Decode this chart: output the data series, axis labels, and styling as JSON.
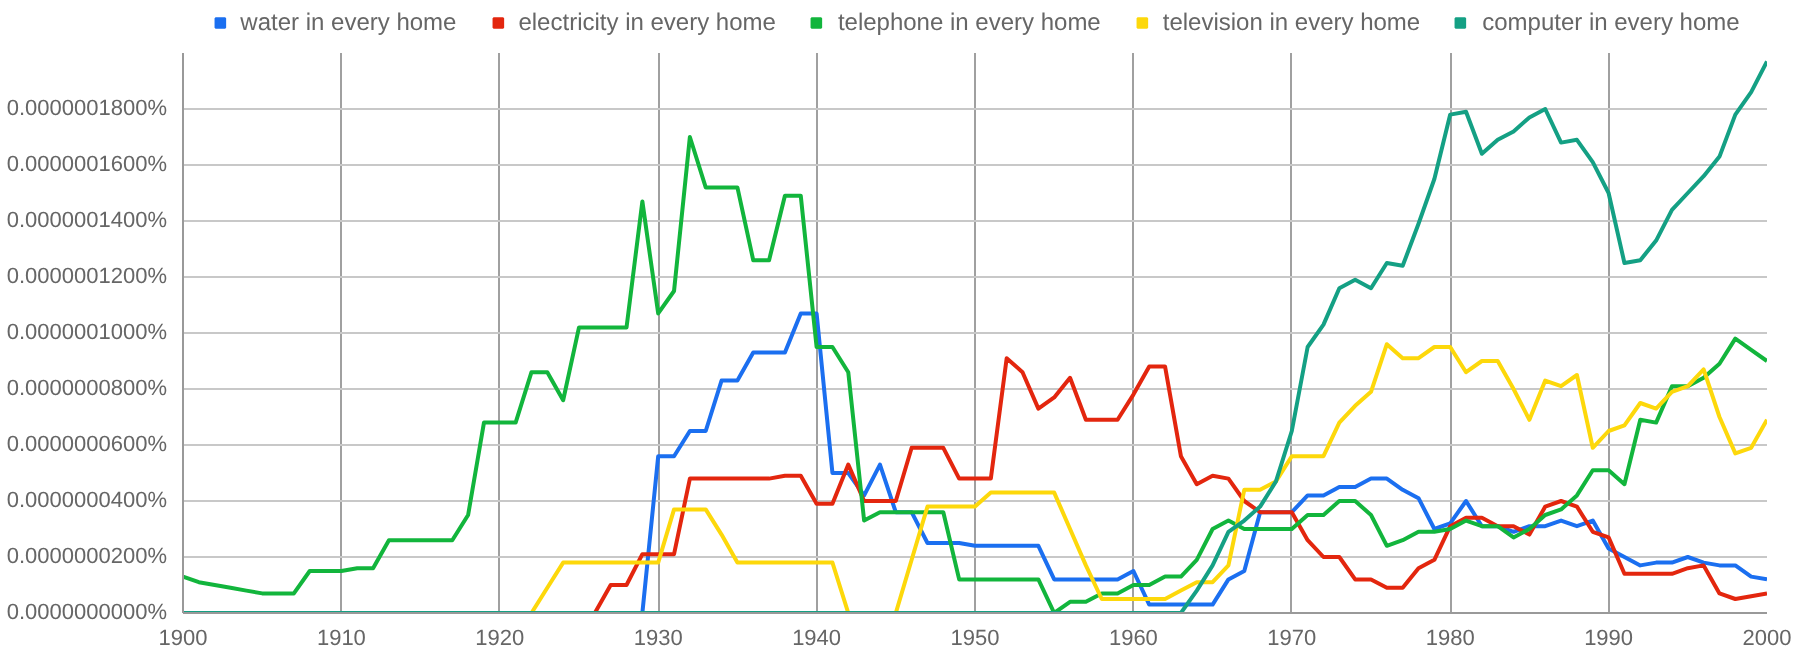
{
  "chart_data": {
    "type": "line",
    "x": [
      1900,
      1901,
      1902,
      1903,
      1904,
      1905,
      1906,
      1907,
      1908,
      1909,
      1910,
      1911,
      1912,
      1913,
      1914,
      1915,
      1916,
      1917,
      1918,
      1919,
      1920,
      1921,
      1922,
      1923,
      1924,
      1925,
      1926,
      1927,
      1928,
      1929,
      1930,
      1931,
      1932,
      1933,
      1934,
      1935,
      1936,
      1937,
      1938,
      1939,
      1940,
      1941,
      1942,
      1943,
      1944,
      1945,
      1946,
      1947,
      1948,
      1949,
      1950,
      1951,
      1952,
      1953,
      1954,
      1955,
      1956,
      1957,
      1958,
      1959,
      1960,
      1961,
      1962,
      1963,
      1964,
      1965,
      1966,
      1967,
      1968,
      1969,
      1970,
      1971,
      1972,
      1973,
      1974,
      1975,
      1976,
      1977,
      1978,
      1979,
      1980,
      1981,
      1982,
      1983,
      1984,
      1985,
      1986,
      1987,
      1988,
      1989,
      1990,
      1991,
      1992,
      1993,
      1994,
      1995,
      1996,
      1997,
      1998,
      1999,
      2000
    ],
    "series": [
      {
        "name": "water in every home",
        "color": "#1b6ff0",
        "values": [
          null,
          null,
          null,
          null,
          null,
          null,
          null,
          null,
          null,
          null,
          null,
          null,
          null,
          null,
          null,
          null,
          null,
          null,
          null,
          null,
          null,
          null,
          null,
          null,
          null,
          null,
          null,
          null,
          0,
          0,
          5.6e-08,
          5.6e-08,
          6.5e-08,
          6.5e-08,
          8.3e-08,
          8.3e-08,
          9.3e-08,
          9.3e-08,
          9.3e-08,
          1.07e-07,
          1.07e-07,
          5e-08,
          5e-08,
          4.2e-08,
          5.3e-08,
          3.6e-08,
          3.6e-08,
          2.5e-08,
          2.5e-08,
          2.5e-08,
          2.4e-08,
          2.4e-08,
          2.4e-08,
          2.4e-08,
          2.4e-08,
          1.2e-08,
          1.2e-08,
          1.2e-08,
          1.2e-08,
          1.2e-08,
          1.5e-08,
          3e-09,
          3e-09,
          3e-09,
          3e-09,
          3e-09,
          1.2e-08,
          1.5e-08,
          3.6e-08,
          3.6e-08,
          3.6e-08,
          4.2e-08,
          4.2e-08,
          4.5e-08,
          4.5e-08,
          4.8e-08,
          4.8e-08,
          4.4e-08,
          4.1e-08,
          3e-08,
          3.2e-08,
          4e-08,
          3.1e-08,
          3.1e-08,
          2.9e-08,
          3.1e-08,
          3.1e-08,
          3.3e-08,
          3.1e-08,
          3.3e-08,
          2.3e-08,
          2e-08,
          1.7e-08,
          1.8e-08,
          1.8e-08,
          2e-08,
          1.8e-08,
          1.7e-08,
          1.7e-08,
          1.3e-08,
          1.2e-08
        ]
      },
      {
        "name": "electricity in every home",
        "color": "#e3260e",
        "values": [
          null,
          null,
          null,
          null,
          null,
          null,
          null,
          null,
          null,
          null,
          null,
          null,
          null,
          null,
          null,
          null,
          null,
          null,
          null,
          null,
          null,
          null,
          null,
          null,
          null,
          0,
          0,
          1e-08,
          1e-08,
          2.1e-08,
          2.1e-08,
          2.1e-08,
          4.8e-08,
          4.8e-08,
          4.8e-08,
          4.8e-08,
          4.8e-08,
          4.8e-08,
          4.9e-08,
          4.9e-08,
          3.9e-08,
          3.9e-08,
          5.3e-08,
          4e-08,
          4e-08,
          4e-08,
          5.9e-08,
          5.9e-08,
          5.9e-08,
          4.8e-08,
          4.8e-08,
          4.8e-08,
          9.1e-08,
          8.6e-08,
          7.3e-08,
          7.7e-08,
          8.4e-08,
          6.9e-08,
          6.9e-08,
          6.9e-08,
          7.8e-08,
          8.8e-08,
          8.8e-08,
          5.6e-08,
          4.6e-08,
          4.9e-08,
          4.8e-08,
          4e-08,
          3.6e-08,
          3.6e-08,
          3.6e-08,
          2.6e-08,
          2e-08,
          2e-08,
          1.2e-08,
          1.2e-08,
          9e-09,
          9e-09,
          1.6e-08,
          1.9e-08,
          3.1e-08,
          3.4e-08,
          3.4e-08,
          3.1e-08,
          3.1e-08,
          2.8e-08,
          3.8e-08,
          4e-08,
          3.8e-08,
          2.9e-08,
          2.7e-08,
          1.4e-08,
          1.4e-08,
          1.4e-08,
          1.4e-08,
          1.6e-08,
          1.7e-08,
          7e-09,
          5e-09,
          6e-09,
          7e-09
        ]
      },
      {
        "name": "telephone in every home",
        "color": "#12b53c",
        "values": [
          1.3e-08,
          1.1e-08,
          1e-08,
          9e-09,
          8e-09,
          7e-09,
          7e-09,
          7e-09,
          1.5e-08,
          1.5e-08,
          1.5e-08,
          1.6e-08,
          1.6e-08,
          2.6e-08,
          2.6e-08,
          2.6e-08,
          2.6e-08,
          2.6e-08,
          3.5e-08,
          6.8e-08,
          6.8e-08,
          6.8e-08,
          8.6e-08,
          8.6e-08,
          7.6e-08,
          1.02e-07,
          1.02e-07,
          1.02e-07,
          1.02e-07,
          1.47e-07,
          1.07e-07,
          1.15e-07,
          1.7e-07,
          1.52e-07,
          1.52e-07,
          1.52e-07,
          1.26e-07,
          1.26e-07,
          1.49e-07,
          1.49e-07,
          9.5e-08,
          9.5e-08,
          8.6e-08,
          3.3e-08,
          3.6e-08,
          3.6e-08,
          3.6e-08,
          3.6e-08,
          3.6e-08,
          1.2e-08,
          1.2e-08,
          1.2e-08,
          1.2e-08,
          1.2e-08,
          1.2e-08,
          0,
          4e-09,
          4e-09,
          7e-09,
          7e-09,
          1e-08,
          1e-08,
          1.3e-08,
          1.3e-08,
          1.9e-08,
          3e-08,
          3.3e-08,
          3e-08,
          3e-08,
          3e-08,
          3e-08,
          3.5e-08,
          3.5e-08,
          4e-08,
          4e-08,
          3.5e-08,
          2.4e-08,
          2.6e-08,
          2.9e-08,
          2.9e-08,
          3e-08,
          3.3e-08,
          3.1e-08,
          3.1e-08,
          2.7e-08,
          3e-08,
          3.5e-08,
          3.7e-08,
          4.2e-08,
          5.1e-08,
          5.1e-08,
          4.6e-08,
          6.9e-08,
          6.8e-08,
          8.1e-08,
          8.1e-08,
          8.4e-08,
          8.9e-08,
          9.8e-08,
          9.4e-08,
          9e-08
        ]
      },
      {
        "name": "television in every home",
        "color": "#fdd80b",
        "values": [
          null,
          null,
          null,
          null,
          null,
          null,
          null,
          null,
          null,
          null,
          null,
          null,
          null,
          null,
          null,
          null,
          null,
          null,
          null,
          null,
          null,
          0,
          0,
          9e-09,
          1.8e-08,
          1.8e-08,
          1.8e-08,
          1.8e-08,
          1.8e-08,
          1.8e-08,
          1.8e-08,
          3.7e-08,
          3.7e-08,
          3.7e-08,
          2.8e-08,
          1.8e-08,
          1.8e-08,
          1.8e-08,
          1.8e-08,
          1.8e-08,
          1.8e-08,
          1.8e-08,
          0,
          0,
          0,
          0,
          1.9e-08,
          3.8e-08,
          3.8e-08,
          3.8e-08,
          3.8e-08,
          4.3e-08,
          4.3e-08,
          4.3e-08,
          4.3e-08,
          4.3e-08,
          3e-08,
          1.7e-08,
          5e-09,
          5e-09,
          5e-09,
          5e-09,
          5e-09,
          8e-09,
          1.1e-08,
          1.1e-08,
          1.7e-08,
          4.4e-08,
          4.4e-08,
          4.7e-08,
          5.6e-08,
          5.6e-08,
          5.6e-08,
          6.8e-08,
          7.4e-08,
          7.9e-08,
          9.6e-08,
          9.1e-08,
          9.1e-08,
          9.5e-08,
          9.5e-08,
          8.6e-08,
          9e-08,
          9e-08,
          8e-08,
          6.9e-08,
          8.3e-08,
          8.1e-08,
          8.5e-08,
          5.9e-08,
          6.5e-08,
          6.7e-08,
          7.5e-08,
          7.3e-08,
          7.9e-08,
          8.1e-08,
          8.7e-08,
          7e-08,
          5.7e-08,
          5.9e-08,
          6.9e-08
        ]
      },
      {
        "name": "computer in every home",
        "color": "#14a084",
        "values": [
          0,
          0,
          0,
          0,
          0,
          0,
          0,
          0,
          0,
          0,
          0,
          0,
          0,
          0,
          0,
          0,
          0,
          0,
          0,
          0,
          0,
          0,
          0,
          0,
          0,
          0,
          0,
          0,
          0,
          0,
          0,
          0,
          0,
          0,
          0,
          0,
          0,
          0,
          0,
          0,
          0,
          0,
          0,
          0,
          0,
          0,
          0,
          0,
          0,
          0,
          0,
          0,
          0,
          0,
          0,
          0,
          0,
          0,
          0,
          0,
          0,
          0,
          0,
          0,
          8e-09,
          1.7e-08,
          2.9e-08,
          3.3e-08,
          3.8e-08,
          4.7e-08,
          6.5e-08,
          9.5e-08,
          1.03e-07,
          1.16e-07,
          1.19e-07,
          1.16e-07,
          1.25e-07,
          1.24e-07,
          1.39e-07,
          1.55e-07,
          1.78e-07,
          1.79e-07,
          1.64e-07,
          1.69e-07,
          1.72e-07,
          1.77e-07,
          1.8e-07,
          1.68e-07,
          1.69e-07,
          1.61e-07,
          1.5e-07,
          1.25e-07,
          1.26e-07,
          1.33e-07,
          1.44e-07,
          1.5e-07,
          1.56e-07,
          1.63e-07,
          1.78e-07,
          1.86e-07,
          1.97e-07
        ]
      }
    ],
    "xlim": [
      1900,
      2000
    ],
    "xticks": [
      1900,
      1910,
      1920,
      1930,
      1940,
      1950,
      1960,
      1970,
      1980,
      1990,
      2000
    ],
    "ylim": [
      0,
      2e-07
    ],
    "yticks": [
      {
        "value": 0,
        "label": "0.0000000000%"
      },
      {
        "value": 2e-08,
        "label": "0.0000000200%"
      },
      {
        "value": 4e-08,
        "label": "0.0000000400%"
      },
      {
        "value": 6e-08,
        "label": "0.0000000600%"
      },
      {
        "value": 8e-08,
        "label": "0.0000000800%"
      },
      {
        "value": 1e-07,
        "label": "0.0000001000%"
      },
      {
        "value": 1.2e-07,
        "label": "0.0000001200%"
      },
      {
        "value": 1.4e-07,
        "label": "0.0000001400%"
      },
      {
        "value": 1.6e-07,
        "label": "0.0000001600%"
      },
      {
        "value": 1.8e-07,
        "label": "0.0000001800%"
      }
    ],
    "grid": true,
    "legend": "top",
    "marker": "none",
    "line_style": "solid"
  }
}
